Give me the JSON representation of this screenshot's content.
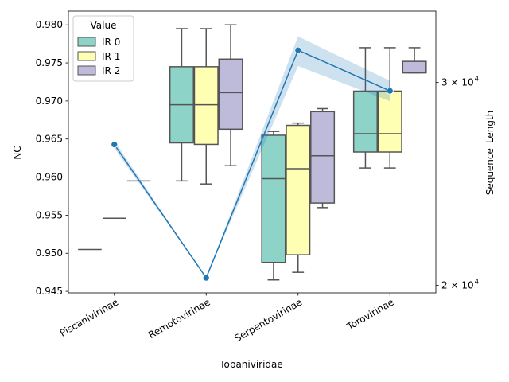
{
  "chart_data": {
    "type": "box",
    "xlabel": "Tobaniviridae",
    "ylabel": "NC",
    "ylabel_right": "Sequence_Length",
    "categories": [
      "Piscanivirinae",
      "Remotovirinae",
      "Serpentovirinae",
      "Torovirinae"
    ],
    "ylim": [
      0.9448,
      0.9818
    ],
    "yticks": [
      0.945,
      0.95,
      0.955,
      0.96,
      0.965,
      0.97,
      0.975,
      0.98
    ],
    "ytick_labels": [
      "0.945",
      "0.950",
      "0.955",
      "0.960",
      "0.965",
      "0.970",
      "0.975",
      "0.980"
    ],
    "y2_scale": "log",
    "y2lim": [
      19700,
      34600
    ],
    "y2ticks": [
      20000,
      30000
    ],
    "y2tick_labels": [
      "2 × 10",
      "3 × 10"
    ],
    "y2tick_exponent": "4",
    "legend": {
      "title": "Value",
      "placement": "top-left",
      "entries": [
        "IR 0",
        "IR 1",
        "IR 2"
      ]
    },
    "series": [
      {
        "name": "IR 0",
        "color": "#8dd3c7",
        "boxes": [
          {
            "category": "Piscanivirinae",
            "min": 0.9505,
            "q1": 0.9505,
            "median": 0.9505,
            "q3": 0.9505,
            "max": 0.9505
          },
          {
            "category": "Remotovirinae",
            "min": 0.9595,
            "q1": 0.9645,
            "median": 0.9695,
            "q3": 0.9745,
            "max": 0.9795
          },
          {
            "category": "Serpentovirinae",
            "min": 0.9465,
            "q1": 0.9488,
            "median": 0.9598,
            "q3": 0.9655,
            "max": 0.966
          },
          {
            "category": "Torovirinae",
            "min": 0.9612,
            "q1": 0.9633,
            "median": 0.9657,
            "q3": 0.9713,
            "max": 0.977
          }
        ]
      },
      {
        "name": "IR 1",
        "color": "#ffffb3",
        "boxes": [
          {
            "category": "Piscanivirinae",
            "min": 0.9546,
            "q1": 0.9546,
            "median": 0.9546,
            "q3": 0.9546,
            "max": 0.9546
          },
          {
            "category": "Remotovirinae",
            "min": 0.9591,
            "q1": 0.9643,
            "median": 0.9695,
            "q3": 0.9745,
            "max": 0.9795
          },
          {
            "category": "Serpentovirinae",
            "min": 0.9475,
            "q1": 0.9498,
            "median": 0.9611,
            "q3": 0.9668,
            "max": 0.9671
          },
          {
            "category": "Torovirinae",
            "min": 0.9612,
            "q1": 0.9633,
            "median": 0.9657,
            "q3": 0.9713,
            "max": 0.977
          }
        ]
      },
      {
        "name": "IR 2",
        "color": "#bebada",
        "boxes": [
          {
            "category": "Piscanivirinae",
            "min": 0.9595,
            "q1": 0.9595,
            "median": 0.9595,
            "q3": 0.9595,
            "max": 0.9595
          },
          {
            "category": "Remotovirinae",
            "min": 0.9615,
            "q1": 0.9663,
            "median": 0.9711,
            "q3": 0.9755,
            "max": 0.98
          },
          {
            "category": "Serpentovirinae",
            "min": 0.956,
            "q1": 0.9566,
            "median": 0.9628,
            "q3": 0.9686,
            "max": 0.969
          },
          {
            "category": "Torovirinae",
            "min": 0.9737,
            "q1": 0.9737,
            "median": 0.9737,
            "q3": 0.9752,
            "max": 0.977
          }
        ]
      }
    ],
    "line": {
      "axis": "right",
      "color": "#1f77b4",
      "marker": "circle",
      "values": [
        26500,
        20300,
        32000,
        29500
      ],
      "ci_low": [
        26300,
        20300,
        31000,
        28900
      ],
      "ci_high": [
        26700,
        20300,
        32900,
        30100
      ]
    }
  }
}
